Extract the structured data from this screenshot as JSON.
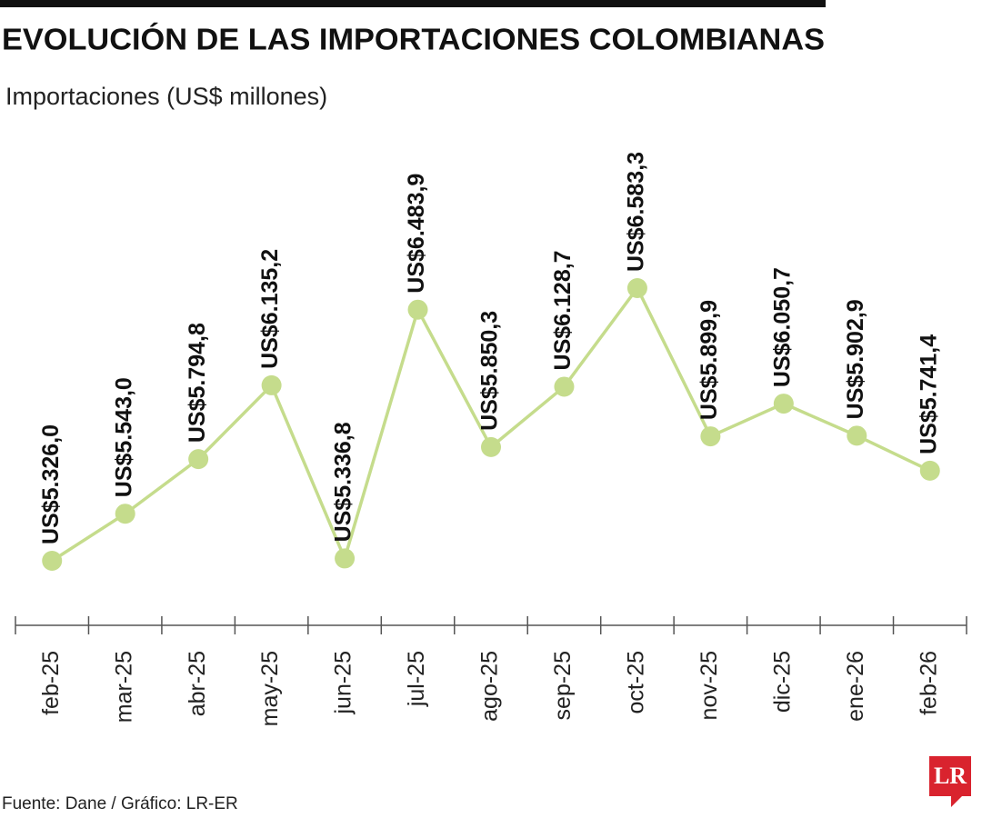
{
  "chart_data": {
    "type": "line",
    "title": "EVOLUCIÓN DE LAS IMPORTACIONES COLOMBIANAS",
    "subtitle": "Importaciones (US$ millones)",
    "source": "Fuente: Dane / Gráfico: LR-ER",
    "logo": "LR",
    "categories": [
      "feb-25",
      "mar-25",
      "abr-25",
      "may-25",
      "jun-25",
      "jul-25",
      "ago-25",
      "sep-25",
      "oct-25",
      "nov-25",
      "dic-25",
      "ene-26",
      "feb-26"
    ],
    "values": [
      5326.0,
      5543.0,
      5794.8,
      6135.2,
      5336.8,
      6483.9,
      5850.3,
      6128.7,
      6583.3,
      5899.9,
      6050.7,
      5902.9,
      5741.4
    ],
    "value_labels": [
      "US$5.326,0",
      "US$5.543,0",
      "US$5.794,8",
      "US$6.135,2",
      "US$5.336,8",
      "US$6.483,9",
      "US$5.850,3",
      "US$6.128,7",
      "US$6.583,3",
      "US$5.899,9",
      "US$6.050,7",
      "US$5.902,9",
      "US$5.741,4"
    ],
    "color": "#c5dc8c"
  }
}
